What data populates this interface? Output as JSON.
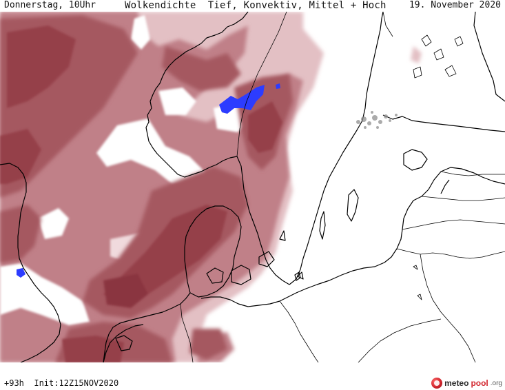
{
  "header": {
    "day_time": "Donnerstag, 10Uhr",
    "title": "Wolkendichte  Tief, Konvektiv, Mittel + Hoch",
    "date": "19. November 2020"
  },
  "footer": {
    "run_info": "+93h  Init:12Z15NOV2020"
  },
  "logo": {
    "part1": "meteo",
    "part2": "pool",
    "suffix": ".org"
  },
  "colors": {
    "cloud_dense": "#95404a",
    "cloud_medium": "#a55860",
    "cloud_light": "#c08088",
    "cloud_faint": "#e3c0c4",
    "convective": "#2c3cff",
    "coastline": "#000000",
    "background": "#ffffff"
  }
}
